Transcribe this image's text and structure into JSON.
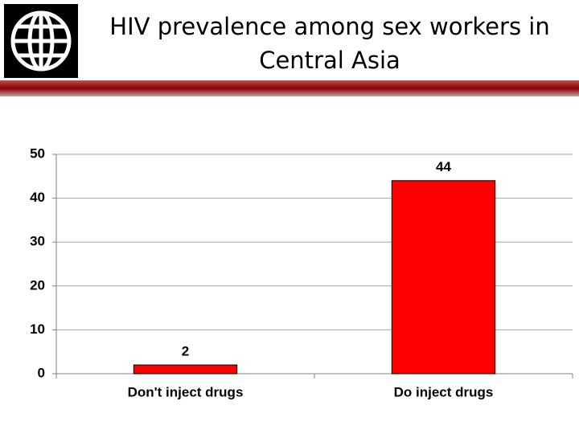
{
  "chart_data": {
    "type": "bar",
    "title": "HIV prevalence among sex workers in Central Asia",
    "categories": [
      "Don't inject drugs",
      "Do inject drugs"
    ],
    "values": [
      2,
      44
    ],
    "color": "#ff0000",
    "ylim": [
      0,
      50
    ],
    "yticks": [
      0,
      10,
      20,
      30,
      40,
      50
    ],
    "grid": true
  }
}
